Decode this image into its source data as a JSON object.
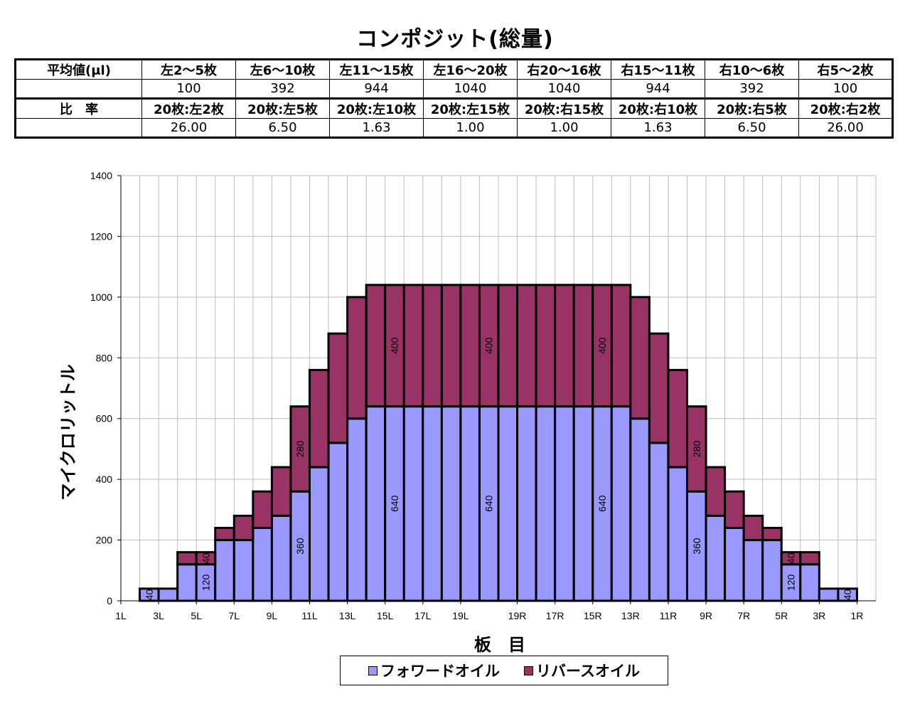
{
  "title": "コンポジット(総量)",
  "table": {
    "row1_header": "平均値(μl)",
    "columns": [
      "左2〜5枚",
      "左6〜10枚",
      "左11〜15枚",
      "左16〜20枚",
      "右20〜16枚",
      "右15〜11枚",
      "右10〜6枚",
      "右5〜2枚"
    ],
    "averages": [
      "100",
      "392",
      "944",
      "1040",
      "1040",
      "944",
      "392",
      "100"
    ],
    "row3_header": "比　率",
    "ratio_labels": [
      "20枚:左2枚",
      "20枚:左5枚",
      "20枚:左10枚",
      "20枚:左15枚",
      "20枚:右15枚",
      "20枚:右10枚",
      "20枚:右5枚",
      "20枚:右2枚"
    ],
    "ratios": [
      "26.00",
      "6.50",
      "1.63",
      "1.00",
      "1.00",
      "1.63",
      "6.50",
      "26.00"
    ]
  },
  "chart_data": {
    "type": "bar",
    "stacked": true,
    "xlabel": "板　目",
    "ylabel": "マイクロリットル",
    "ylim": [
      0,
      1400
    ],
    "yticks": [
      0,
      200,
      400,
      600,
      800,
      1000,
      1200,
      1400
    ],
    "grid": true,
    "legend_position": "bottom",
    "categories": [
      "1L",
      "2L",
      "3L",
      "4L",
      "5L",
      "6L",
      "7L",
      "8L",
      "9L",
      "10L",
      "11L",
      "12L",
      "13L",
      "14L",
      "15L",
      "16L",
      "17L",
      "18L",
      "19L",
      "20L",
      "20R",
      "19R",
      "18R",
      "17R",
      "16R",
      "15R",
      "14R",
      "13R",
      "12R",
      "11R",
      "10R",
      "9R",
      "8R",
      "7R",
      "6R",
      "5R",
      "4R",
      "3R",
      "2R",
      "1R"
    ],
    "x_tick_labels": [
      "1L",
      "3L",
      "5L",
      "7L",
      "9L",
      "11L",
      "13L",
      "15L",
      "17L",
      "19L",
      "19R",
      "17R",
      "15R",
      "13R",
      "11R",
      "9R",
      "7R",
      "5R",
      "3R",
      "1R"
    ],
    "series": [
      {
        "name": "フォワードオイル",
        "color": "#9999ff",
        "values": [
          0,
          40,
          40,
          120,
          120,
          200,
          200,
          240,
          280,
          360,
          440,
          520,
          600,
          640,
          640,
          640,
          640,
          640,
          640,
          640,
          640,
          640,
          640,
          640,
          640,
          640,
          640,
          600,
          520,
          440,
          360,
          280,
          240,
          200,
          200,
          120,
          120,
          40,
          40,
          0
        ]
      },
      {
        "name": "リバースオイル",
        "color": "#993366",
        "values": [
          0,
          0,
          0,
          40,
          40,
          40,
          80,
          120,
          160,
          280,
          320,
          360,
          400,
          400,
          400,
          400,
          400,
          400,
          400,
          400,
          400,
          400,
          400,
          400,
          400,
          400,
          400,
          400,
          360,
          320,
          280,
          160,
          120,
          80,
          40,
          40,
          40,
          0,
          0,
          0
        ]
      }
    ],
    "data_labels": [
      {
        "category": "2L",
        "series": 0,
        "text": "40"
      },
      {
        "category": "5L",
        "series": 0,
        "text": "120"
      },
      {
        "category": "5L",
        "series": 1,
        "text": "40"
      },
      {
        "category": "10L",
        "series": 0,
        "text": "360"
      },
      {
        "category": "10L",
        "series": 1,
        "text": "280"
      },
      {
        "category": "15L",
        "series": 0,
        "text": "640"
      },
      {
        "category": "15L",
        "series": 1,
        "text": "400"
      },
      {
        "category": "20L",
        "series": 0,
        "text": "640"
      },
      {
        "category": "20L",
        "series": 1,
        "text": "400"
      },
      {
        "category": "15R",
        "series": 0,
        "text": "640"
      },
      {
        "category": "15R",
        "series": 1,
        "text": "400"
      },
      {
        "category": "10R",
        "series": 0,
        "text": "360"
      },
      {
        "category": "10R",
        "series": 1,
        "text": "280"
      },
      {
        "category": "5R",
        "series": 0,
        "text": "120"
      },
      {
        "category": "5R",
        "series": 1,
        "text": "40"
      },
      {
        "category": "2R",
        "series": 0,
        "text": "40"
      }
    ]
  }
}
